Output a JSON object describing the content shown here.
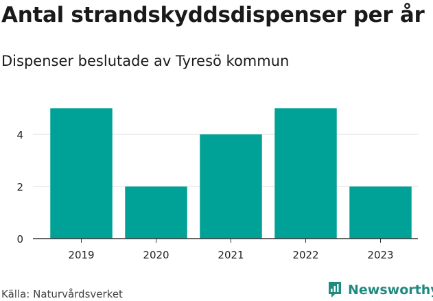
{
  "title": "Antal strandskyddsdispenser per år",
  "subtitle": "Dispenser beslutade av Tyresö kommun",
  "source": "Källa: Naturvårdsverket",
  "brand": {
    "name": "Newsworthy",
    "icon": "newsworthy-logo-icon",
    "color": "#1e8a80"
  },
  "colors": {
    "bar": "#00a196",
    "grid": "#dddddd",
    "axis": "#333333"
  },
  "chart_data": {
    "type": "bar",
    "title": "Antal strandskyddsdispenser per år",
    "subtitle": "Dispenser beslutade av Tyresö kommun",
    "xlabel": "",
    "ylabel": "",
    "categories": [
      "2019",
      "2020",
      "2021",
      "2022",
      "2023"
    ],
    "values": [
      5,
      2,
      4,
      5,
      2
    ],
    "ylim": [
      0,
      5
    ],
    "yticks": [
      0,
      2,
      4
    ],
    "grid": true,
    "legend": "none"
  }
}
